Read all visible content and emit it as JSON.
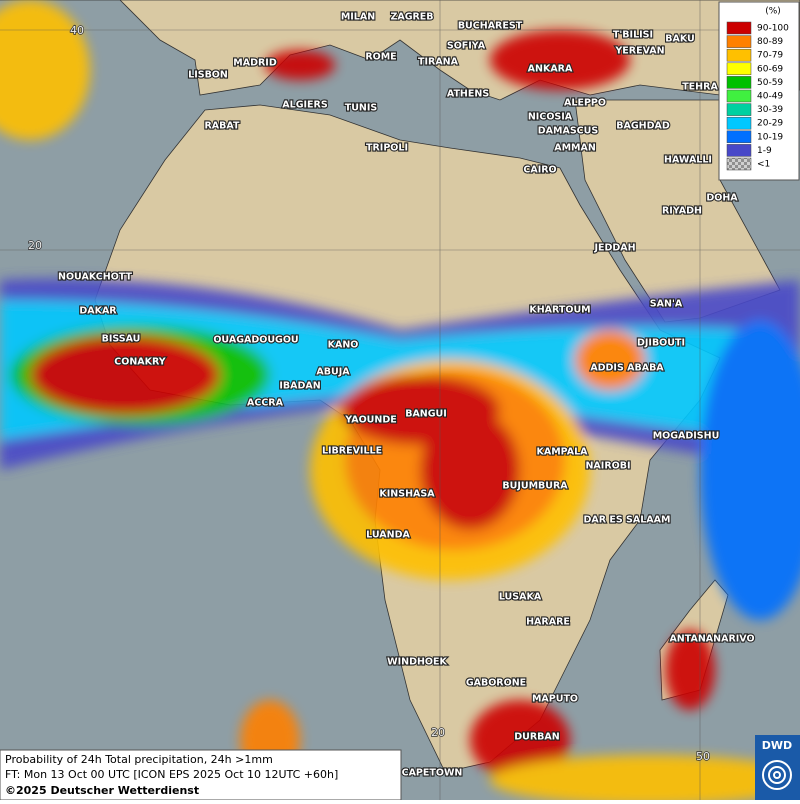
{
  "legend": {
    "title": "(%)",
    "items": [
      {
        "label": "90-100",
        "color": "#cc0000"
      },
      {
        "label": "80-89",
        "color": "#ff8000"
      },
      {
        "label": "70-79",
        "color": "#ffc000"
      },
      {
        "label": "60-69",
        "color": "#ffff00"
      },
      {
        "label": "50-59",
        "color": "#00c000"
      },
      {
        "label": "40-49",
        "color": "#40f040"
      },
      {
        "label": "30-39",
        "color": "#00d0a0"
      },
      {
        "label": "20-29",
        "color": "#00c8ff"
      },
      {
        "label": "10-19",
        "color": "#0070ff"
      },
      {
        "label": "1-9",
        "color": "#4848c8"
      },
      {
        "label": "<1",
        "color": "#a0a0a0"
      }
    ]
  },
  "cities": [
    "MILAN",
    "ZAGREB",
    "BUCHAREST",
    "T'BILISI",
    "BAKU",
    "SOFIYA",
    "YEREVAN",
    "MADRID",
    "ROME",
    "TIRANA",
    "LISBON",
    "ANKARA",
    "TEHRA",
    "ALGIERS",
    "TUNIS",
    "ATHENS",
    "ALEPPO",
    "NICOSIA",
    "RABAT",
    "BAGHDAD",
    "DAMASCUS",
    "TRIPOLI",
    "AMMAN",
    "HAWALLI",
    "CAIRO",
    "DOHA",
    "RIYADH",
    "NOUAKCHOTT",
    "JEDDAH",
    "DAKAR",
    "KHARTOUM",
    "SAN'A",
    "BISSAU",
    "OUAGADOUGOU",
    "KANO",
    "DJIBOUTI",
    "CONAKRY",
    "ABUJA",
    "ADDIS ABABA",
    "IBADAN",
    "ACCRA",
    "YAOUNDE",
    "BANGUI",
    "MOGADISHU",
    "LIBREVILLE",
    "KAMPALA",
    "NAIROBI",
    "KINSHASA",
    "BUJUMBURA",
    "DAR ES SALAAM",
    "LUANDA",
    "LUSAKA",
    "HARARE",
    "ANTANANARIVO",
    "WINDHOEK",
    "GABORONE",
    "MAPUTO",
    "DURBAN",
    "CAPETOWN"
  ],
  "grid_labels": [
    "40",
    "20",
    "20",
    "50"
  ],
  "caption": {
    "line1": "Probability of 24h Total precipitation, 24h >1mm",
    "line2": "FT: Mon 13 Oct 00 UTC [ICON EPS 2025 Oct 10 12UTC +60h]",
    "line3": "©2025 Deutscher Wetterdienst"
  },
  "logo": "DWD"
}
